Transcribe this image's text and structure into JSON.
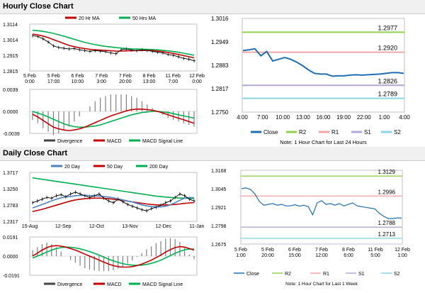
{
  "hourly": {
    "title": "Hourly Close Chart",
    "price_chart": {
      "type": "line",
      "ylim": [
        1.2815,
        1.3114
      ],
      "yticks": [
        "1.3114",
        "1.3014",
        "1.2915",
        "1.2815"
      ],
      "xticks": [
        "5 Feb\n0:00",
        "5 Feb\n17:00",
        "6 Feb\n10:00",
        "7 Feb\n3:00",
        "7 Feb\n20:00",
        "8 Feb\n13:00",
        "11 Feb\n7:00",
        "12 Feb\n0:00"
      ],
      "legend": [
        "20 Hr MA",
        "50 Hrs MA"
      ],
      "colors": {
        "ma20": "#c00000",
        "ma50": "#00b050",
        "price": "#000000"
      },
      "close": [
        1.304,
        1.3035,
        1.302,
        1.3,
        1.2975,
        1.2965,
        1.296,
        1.2955,
        1.2958,
        1.295,
        1.2945,
        1.294,
        1.2945,
        1.2942,
        1.2938,
        1.293,
        1.2925,
        1.295,
        1.2955,
        1.2948,
        1.2945,
        1.295,
        1.2946,
        1.294,
        1.2935,
        1.293,
        1.292,
        1.2915,
        1.2905,
        1.2895,
        1.289,
        1.288
      ],
      "ma20": [
        1.305,
        1.3045,
        1.3038,
        1.3028,
        1.3015,
        1.3003,
        1.299,
        1.2978,
        1.297,
        1.2963,
        1.2958,
        1.2953,
        1.295,
        1.2948,
        1.2946,
        1.2944,
        1.2942,
        1.2942,
        1.2943,
        1.2944,
        1.2945,
        1.2946,
        1.2946,
        1.2945,
        1.2942,
        1.2938,
        1.2933,
        1.2927,
        1.292,
        1.2913,
        1.2906,
        1.2899
      ],
      "ma50": [
        1.3075,
        1.3072,
        1.3068,
        1.3062,
        1.3055,
        1.3046,
        1.3037,
        1.3027,
        1.3017,
        1.3007,
        1.2998,
        1.299,
        1.2983,
        1.2977,
        1.2972,
        1.2968,
        1.2964,
        1.2961,
        1.2958,
        1.2956,
        1.2955,
        1.2954,
        1.2953,
        1.2952,
        1.295,
        1.2947,
        1.2943,
        1.2939,
        1.2934,
        1.2928,
        1.2922,
        1.2915
      ]
    },
    "macd_chart": {
      "type": "line",
      "ylim": [
        -0.0039,
        0.0039
      ],
      "yticks": [
        "0.0039",
        "0.0000",
        "-0.0039"
      ],
      "legend": [
        "Divergence",
        "MACD",
        "MACD Signal Line"
      ],
      "colors": {
        "divergence": "#808080",
        "macd": "#c00000",
        "signal": "#00b050"
      },
      "macd": [
        -0.0005,
        -0.001,
        -0.0016,
        -0.0022,
        -0.0028,
        -0.0031,
        -0.0033,
        -0.0034,
        -0.0033,
        -0.0031,
        -0.0028,
        -0.0024,
        -0.002,
        -0.0016,
        -0.0012,
        -0.0008,
        -0.0005,
        -0.0002,
        0.0001,
        0.0003,
        0.0004,
        0.0004,
        0.0003,
        0.0002,
        0.0,
        -0.0003,
        -0.0006,
        -0.0009,
        -0.0012,
        -0.0015,
        -0.0018,
        -0.0021
      ],
      "signal": [
        0.0,
        -0.0003,
        -0.0006,
        -0.001,
        -0.0014,
        -0.0018,
        -0.0022,
        -0.0025,
        -0.0027,
        -0.0028,
        -0.0028,
        -0.0027,
        -0.0026,
        -0.0024,
        -0.0021,
        -0.0018,
        -0.0015,
        -0.0012,
        -0.0009,
        -0.0006,
        -0.0004,
        -0.0002,
        -0.0001,
        0.0,
        0.0,
        -0.0001,
        -0.0002,
        -0.0004,
        -0.0006,
        -0.0008,
        -0.001,
        -0.0012
      ]
    },
    "pivot_chart": {
      "type": "line",
      "ylim": [
        1.275,
        1.3016
      ],
      "yticks": [
        "1.3016",
        "1.2949",
        "1.2883",
        "1.2817",
        "1.2750"
      ],
      "xticks": [
        "4:00",
        "7:00",
        "10:00",
        "13:00",
        "16:00",
        "19:00",
        "22:00",
        "1:00",
        "4:00"
      ],
      "close": [
        1.2925,
        1.2927,
        1.293,
        1.291,
        1.2922,
        1.2895,
        1.29,
        1.2905,
        1.29,
        1.2892,
        1.2882,
        1.287,
        1.286,
        1.2858,
        1.2858,
        1.2852,
        1.2853,
        1.2853,
        1.2855,
        1.2856,
        1.2855,
        1.2856,
        1.2857,
        1.2858,
        1.286,
        1.2862,
        1.2862,
        1.286
      ],
      "levels": [
        {
          "name": "R2",
          "value": 1.2977,
          "label": "1.2977",
          "color": "#92d050"
        },
        {
          "name": "R1",
          "value": 1.292,
          "label": "1.2920",
          "color": "#f4a6a6"
        },
        {
          "name": "S1",
          "value": 1.2826,
          "label": "1.2826",
          "color": "#b4a7d6"
        },
        {
          "name": "S2",
          "value": 1.2789,
          "label": "1.2789",
          "color": "#8ed3e8"
        }
      ],
      "legend": [
        "Close",
        "R2",
        "R1",
        "S1",
        "S2"
      ],
      "close_color": "#1f6fb2",
      "note": "Note: 1 Hour Chart for Last 24 Hours"
    }
  },
  "daily": {
    "title": "Daily Close Chart",
    "price_chart": {
      "type": "line",
      "ylim": [
        1.2317,
        1.3717
      ],
      "yticks": [
        "1.3717",
        "1.3250",
        "1.2783",
        "1.2317"
      ],
      "xticks": [
        "15-Aug",
        "12-Sep",
        "12-Oct",
        "13-Nov",
        "12-Dec",
        "11-Jan"
      ],
      "legend": [
        "20 Day",
        "50 Day",
        "200 Day"
      ],
      "colors": {
        "ma20": "#4f81bd",
        "ma50": "#c00000",
        "ma200": "#00b050",
        "price": "#000000"
      },
      "close": [
        1.285,
        1.29,
        1.295,
        1.3,
        1.298,
        1.305,
        1.308,
        1.302,
        1.31,
        1.315,
        1.31,
        1.305,
        1.3,
        1.305,
        1.31,
        1.298,
        1.29,
        1.285,
        1.295,
        1.288,
        1.28,
        1.275,
        1.27,
        1.265,
        1.262,
        1.268,
        1.272,
        1.278,
        1.285,
        1.29,
        1.3,
        1.31,
        1.305,
        1.295,
        1.29
      ],
      "ma20": [
        1.27,
        1.275,
        1.28,
        1.285,
        1.29,
        1.295,
        1.299,
        1.301,
        1.303,
        1.305,
        1.306,
        1.306,
        1.3055,
        1.305,
        1.304,
        1.303,
        1.301,
        1.299,
        1.296,
        1.293,
        1.29,
        1.287,
        1.283,
        1.279,
        1.276,
        1.274,
        1.273,
        1.273,
        1.275,
        1.279,
        1.285,
        1.292,
        1.298,
        1.3,
        1.299
      ],
      "ma50": [
        1.26,
        1.263,
        1.266,
        1.27,
        1.274,
        1.278,
        1.282,
        1.286,
        1.29,
        1.293,
        1.295,
        1.2965,
        1.2975,
        1.298,
        1.298,
        1.2975,
        1.2965,
        1.295,
        1.2935,
        1.2915,
        1.2895,
        1.2875,
        1.2855,
        1.2835,
        1.2815,
        1.28,
        1.279,
        1.2785,
        1.2785,
        1.279,
        1.28,
        1.2815,
        1.283,
        1.2845,
        1.2855
      ],
      "ma200": [
        1.356,
        1.354,
        1.352,
        1.35,
        1.348,
        1.346,
        1.344,
        1.342,
        1.34,
        1.338,
        1.336,
        1.334,
        1.332,
        1.33,
        1.328,
        1.326,
        1.324,
        1.322,
        1.32,
        1.318,
        1.316,
        1.314,
        1.312,
        1.31,
        1.308,
        1.306,
        1.304,
        1.3025,
        1.301,
        1.3,
        1.299,
        1.2985,
        1.298,
        1.2975,
        1.297
      ]
    },
    "macd_chart": {
      "type": "line",
      "ylim": [
        -0.0191,
        0.0191
      ],
      "yticks": [
        "0.0191",
        "0.0000",
        "-0.0191"
      ],
      "legend": [
        "Divergence",
        "MACD",
        "MACD Signal Line"
      ],
      "colors": {
        "divergence": "#808080",
        "macd": "#c00000",
        "signal": "#00b050"
      },
      "macd": [
        0.0,
        0.003,
        0.006,
        0.0085,
        0.01,
        0.0105,
        0.01,
        0.009,
        0.0075,
        0.006,
        0.004,
        0.002,
        0.0,
        -0.002,
        -0.004,
        -0.006,
        -0.008,
        -0.0095,
        -0.0105,
        -0.011,
        -0.011,
        -0.0105,
        -0.0095,
        -0.008,
        -0.006,
        -0.004,
        -0.0015,
        0.001,
        0.004,
        0.0065,
        0.0085,
        0.0095,
        0.009,
        0.0075,
        0.006
      ],
      "signal": [
        -0.002,
        0.0,
        0.002,
        0.004,
        0.006,
        0.0075,
        0.0085,
        0.009,
        0.0088,
        0.0082,
        0.0072,
        0.006,
        0.0045,
        0.0028,
        0.001,
        -0.001,
        -0.003,
        -0.0048,
        -0.0063,
        -0.0075,
        -0.0085,
        -0.009,
        -0.0092,
        -0.009,
        -0.0083,
        -0.0072,
        -0.0058,
        -0.004,
        -0.0018,
        0.0005,
        0.0028,
        0.0048,
        0.0063,
        0.007,
        0.007
      ]
    },
    "pivot_chart": {
      "type": "line",
      "ylim": [
        1.2675,
        1.3168
      ],
      "yticks": [
        "1.3168",
        "1.3045",
        "1.2921",
        "1.2798",
        "1.2675"
      ],
      "xticks": [
        "5 Feb\n1:00",
        "5 Feb\n20:00",
        "6 Feb\n15:00",
        "7 Feb\n12:00",
        "8 Feb\n6:00",
        "11 Feb\n5:00",
        "12 Feb\n1:00"
      ],
      "close": [
        1.3045,
        1.305,
        1.304,
        1.301,
        1.296,
        1.2935,
        1.294,
        1.2945,
        1.2935,
        1.294,
        1.293,
        1.293,
        1.2938,
        1.2928,
        1.2935,
        1.2925,
        1.287,
        1.295,
        1.2965,
        1.294,
        1.2945,
        1.2935,
        1.2945,
        1.293,
        1.294,
        1.295,
        1.293,
        1.2925,
        1.292,
        1.2915,
        1.291,
        1.288,
        1.286,
        1.2845,
        1.2845,
        1.285,
        1.2848
      ],
      "levels": [
        {
          "name": "R2",
          "value": 1.3129,
          "label": "1.3129",
          "color": "#92d050"
        },
        {
          "name": "R1",
          "value": 1.2996,
          "label": "1.2996",
          "color": "#f4a6a6"
        },
        {
          "name": "S1",
          "value": 1.2788,
          "label": "1.2788",
          "color": "#b4a7d6"
        },
        {
          "name": "S2",
          "value": 1.2713,
          "label": "1.2713",
          "color": "#8ed3e8"
        }
      ],
      "legend": [
        "Close",
        "R2",
        "R1",
        "S1",
        "S2"
      ],
      "close_color": "#1f6fb2",
      "note": "Note: 1 Hour Chart for Last 1 Week"
    }
  }
}
